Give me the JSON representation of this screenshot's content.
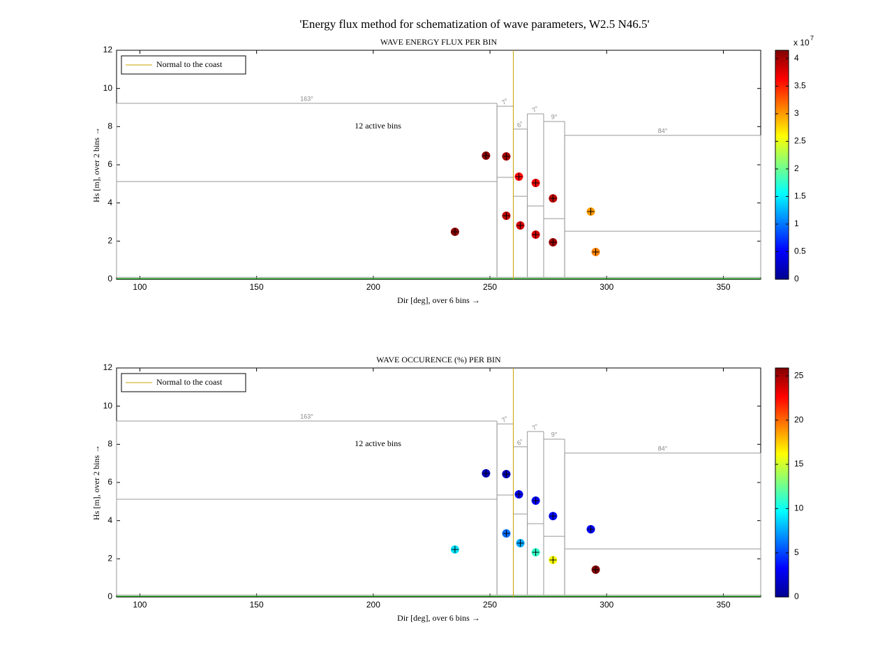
{
  "title": "'Energy flux method for schematization of wave parameters, W2.5 N46.5'",
  "chart_data": [
    {
      "type": "scatter",
      "title": "WAVE ENERGY FLUX PER BIN",
      "xlabel": "Dir [deg], over 6 bins →",
      "ylabel": "Hs [m], over 2 bins →",
      "xlim": [
        90,
        366
      ],
      "xticks": [
        100,
        150,
        200,
        250,
        300,
        350
      ],
      "ylim": [
        0,
        12
      ],
      "yticks": [
        0,
        2,
        4,
        6,
        8,
        10,
        12
      ],
      "x": [
        235,
        248.3,
        257,
        257,
        262.4,
        263,
        269.6,
        269.6,
        277,
        277,
        293.2,
        295.3
      ],
      "y": [
        2.49,
        6.48,
        6.44,
        3.33,
        5.38,
        2.82,
        5.05,
        2.34,
        4.24,
        1.94,
        3.55,
        1.43
      ],
      "color_values": [
        4.1,
        4.1,
        4.0,
        3.9,
        3.6,
        3.8,
        3.7,
        3.8,
        3.9,
        4.0,
        3.0,
        3.1
      ],
      "colormap": "jet",
      "clim": [
        0,
        4.15
      ],
      "cticks": [
        0,
        0.5,
        1,
        1.5,
        2,
        2.5,
        3,
        3.5,
        4
      ],
      "colorbar_exponent": "x 10",
      "colorbar_exponent_power": "7",
      "normal": {
        "name": "Normal to the coast",
        "value": 260,
        "color": "#c8a400"
      },
      "legend": "northwest",
      "annotation": {
        "text": "12 active bins",
        "x": 202,
        "y": 8
      },
      "bins": [
        {
          "label": "163°",
          "edges": [
            90,
            253
          ],
          "hs": [
            0.1,
            5.12,
            9.22
          ]
        },
        {
          "label": "7°",
          "edges": [
            253,
            260
          ],
          "hs": [
            0.1,
            5.34,
            9.07
          ]
        },
        {
          "label": "6°",
          "edges": [
            260,
            266
          ],
          "hs": [
            0.1,
            4.35,
            7.87
          ]
        },
        {
          "label": "7°",
          "edges": [
            266,
            273
          ],
          "hs": [
            0.1,
            3.84,
            8.67
          ]
        },
        {
          "label": "9°",
          "edges": [
            273,
            282
          ],
          "hs": [
            0.1,
            3.18,
            8.27
          ]
        },
        {
          "label": "84°",
          "edges": [
            282,
            366
          ],
          "hs": [
            0.1,
            2.52,
            7.54
          ]
        }
      ]
    },
    {
      "type": "scatter",
      "title": "WAVE OCCURENCE (%) PER BIN",
      "xlabel": "Dir [deg], over 6 bins →",
      "ylabel": "Hs [m], over 2 bins →",
      "xlim": [
        90,
        366
      ],
      "xticks": [
        100,
        150,
        200,
        250,
        300,
        350
      ],
      "ylim": [
        0,
        12
      ],
      "yticks": [
        0,
        2,
        4,
        6,
        8,
        10,
        12
      ],
      "x": [
        235,
        248.3,
        257,
        257,
        262.4,
        263,
        269.6,
        269.6,
        277,
        277,
        293.2,
        295.3
      ],
      "y": [
        2.49,
        6.48,
        6.44,
        3.33,
        5.38,
        2.82,
        5.05,
        2.34,
        4.24,
        1.94,
        3.55,
        1.43
      ],
      "color_values": [
        9,
        1.5,
        1.5,
        6,
        3,
        7.5,
        3,
        11,
        3.5,
        16,
        3,
        26
      ],
      "colormap": "jet",
      "clim": [
        0,
        25.9
      ],
      "cticks": [
        0,
        5,
        10,
        15,
        20,
        25
      ],
      "normal": {
        "name": "Normal to the coast",
        "value": 260,
        "color": "#c8a400"
      },
      "legend": "northwest",
      "annotation": {
        "text": "12 active bins",
        "x": 202,
        "y": 8
      },
      "bins": [
        {
          "label": "163°",
          "edges": [
            90,
            253
          ],
          "hs": [
            0.1,
            5.12,
            9.22
          ]
        },
        {
          "label": "7°",
          "edges": [
            253,
            260
          ],
          "hs": [
            0.1,
            5.34,
            9.07
          ]
        },
        {
          "label": "6°",
          "edges": [
            260,
            266
          ],
          "hs": [
            0.1,
            4.35,
            7.87
          ]
        },
        {
          "label": "7°",
          "edges": [
            266,
            273
          ],
          "hs": [
            0.1,
            3.84,
            8.67
          ]
        },
        {
          "label": "9°",
          "edges": [
            273,
            282
          ],
          "hs": [
            0.1,
            3.18,
            8.27
          ]
        },
        {
          "label": "84°",
          "edges": [
            282,
            366
          ],
          "hs": [
            0.1,
            2.52,
            7.54
          ]
        }
      ]
    }
  ]
}
